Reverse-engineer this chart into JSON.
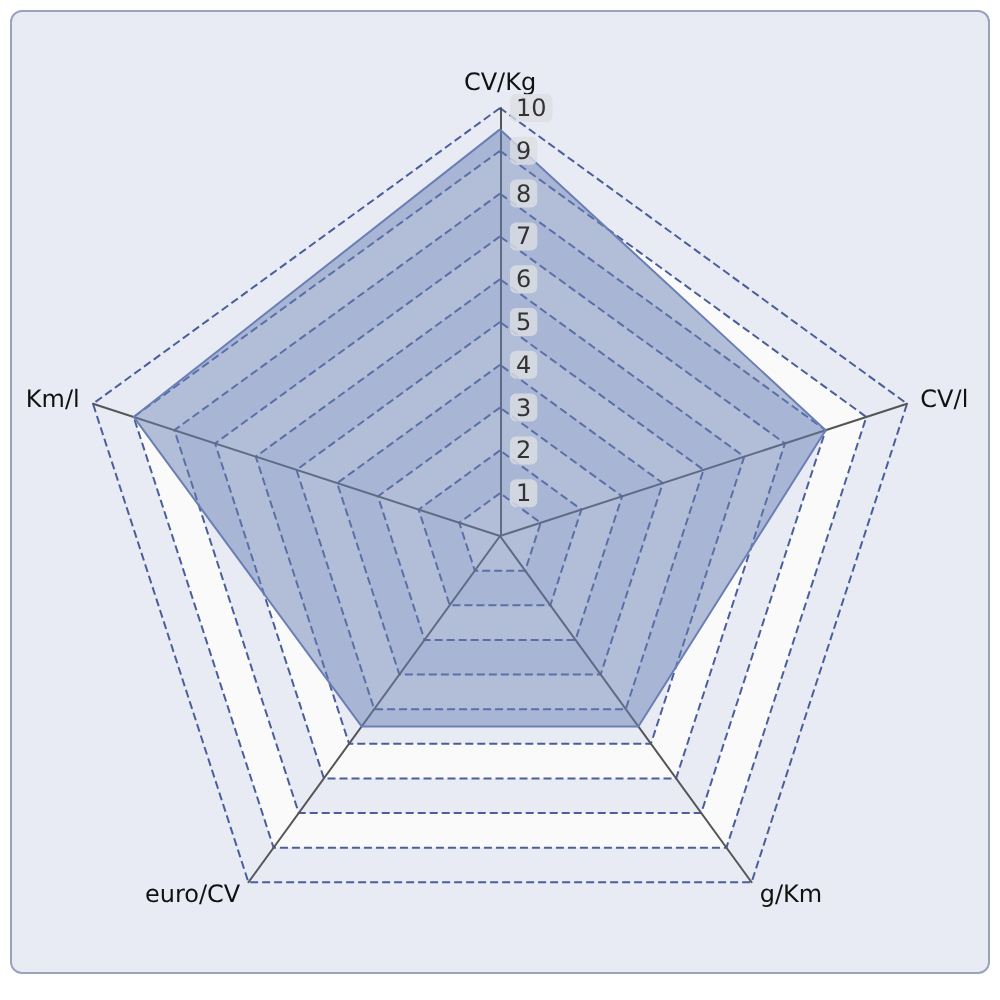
{
  "chart_data": {
    "type": "radar",
    "categories": [
      "CV/Kg",
      "CV/l",
      "g/Km",
      "euro/CV",
      "Km/l"
    ],
    "series": [
      {
        "color": "#6a7fb5",
        "values": [
          9.5,
          8.0,
          5.5,
          5.5,
          9.0
        ]
      }
    ],
    "ylim": [
      0,
      10
    ],
    "yticks": [
      1,
      2,
      3,
      4,
      5,
      6,
      7,
      8,
      9,
      10
    ],
    "grid": true
  }
}
